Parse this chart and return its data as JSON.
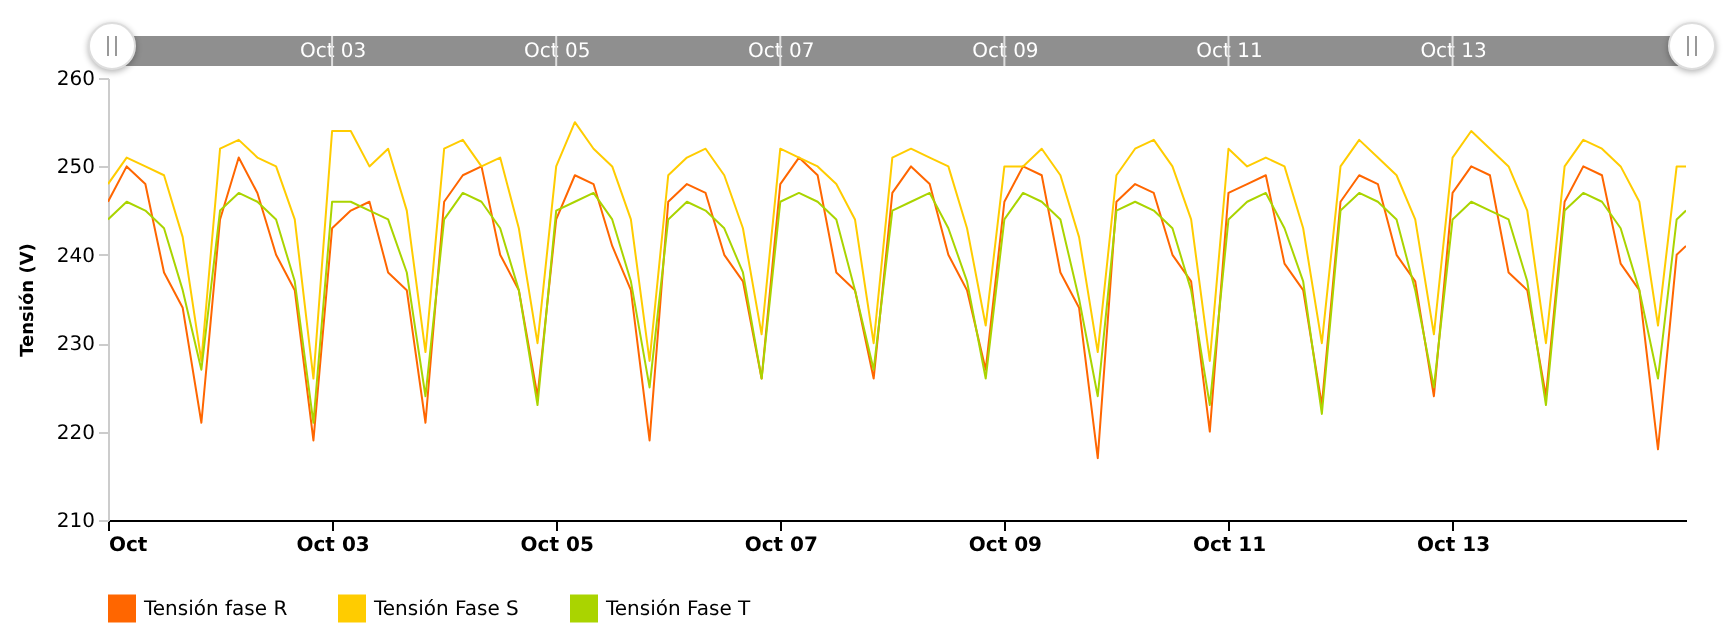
{
  "chart_data": {
    "type": "line",
    "ylabel": "Tensión (V)",
    "x": [
      "--10-01T00:00",
      "--10-01T04:00",
      "--10-01T08:00",
      "--10-01T12:00",
      "--10-01T16:00",
      "--10-01T20:00",
      "--10-02T00:00",
      "--10-02T04:00",
      "--10-02T08:00",
      "--10-02T12:00",
      "--10-02T16:00",
      "--10-02T20:00",
      "--10-03T00:00",
      "--10-03T04:00",
      "--10-03T08:00",
      "--10-03T12:00",
      "--10-03T16:00",
      "--10-03T20:00",
      "--10-04T00:00",
      "--10-04T04:00",
      "--10-04T08:00",
      "--10-04T12:00",
      "--10-04T16:00",
      "--10-04T20:00",
      "--10-05T00:00",
      "--10-05T04:00",
      "--10-05T08:00",
      "--10-05T12:00",
      "--10-05T16:00",
      "--10-05T20:00",
      "--10-06T00:00",
      "--10-06T04:00",
      "--10-06T08:00",
      "--10-06T12:00",
      "--10-06T16:00",
      "--10-06T20:00",
      "--10-07T00:00",
      "--10-07T04:00",
      "--10-07T08:00",
      "--10-07T12:00",
      "--10-07T16:00",
      "--10-07T20:00",
      "--10-08T00:00",
      "--10-08T04:00",
      "--10-08T08:00",
      "--10-08T12:00",
      "--10-08T16:00",
      "--10-08T20:00",
      "--10-09T00:00",
      "--10-09T04:00",
      "--10-09T08:00",
      "--10-09T12:00",
      "--10-09T16:00",
      "--10-09T20:00",
      "--10-10T00:00",
      "--10-10T04:00",
      "--10-10T08:00",
      "--10-10T12:00",
      "--10-10T16:00",
      "--10-10T20:00",
      "--10-11T00:00",
      "--10-11T04:00",
      "--10-11T08:00",
      "--10-11T12:00",
      "--10-11T16:00",
      "--10-11T20:00",
      "--10-12T00:00",
      "--10-12T04:00",
      "--10-12T08:00",
      "--10-12T12:00",
      "--10-12T16:00",
      "--10-12T20:00",
      "--10-13T00:00",
      "--10-13T04:00",
      "--10-13T08:00",
      "--10-13T12:00",
      "--10-13T16:00",
      "--10-13T20:00",
      "--10-14T00:00",
      "--10-14T04:00",
      "--10-14T08:00",
      "--10-14T12:00",
      "--10-14T16:00",
      "--10-14T20:00",
      "--10-15T00:00",
      "--10-15T02:00"
    ],
    "series": [
      {
        "name": "Tensión fase R",
        "color": "#ff6600",
        "values": [
          246,
          250,
          248,
          238,
          234,
          221,
          244,
          251,
          247,
          240,
          236,
          219,
          243,
          245,
          246,
          238,
          236,
          221,
          246,
          249,
          250,
          240,
          236,
          224,
          244,
          249,
          248,
          241,
          236,
          219,
          246,
          248,
          247,
          240,
          237,
          226,
          248,
          251,
          249,
          238,
          236,
          226,
          247,
          250,
          248,
          240,
          236,
          227,
          246,
          250,
          249,
          238,
          234,
          217,
          246,
          248,
          247,
          240,
          237,
          220,
          247,
          248,
          249,
          239,
          236,
          223,
          246,
          249,
          248,
          240,
          237,
          224,
          247,
          250,
          249,
          238,
          236,
          224,
          246,
          250,
          249,
          239,
          236,
          218,
          240,
          241
        ]
      },
      {
        "name": "Tensión Fase S",
        "color": "#ffcc00",
        "values": [
          248,
          251,
          250,
          249,
          242,
          228,
          252,
          253,
          251,
          250,
          244,
          226,
          254,
          254,
          250,
          252,
          245,
          229,
          252,
          253,
          250,
          251,
          243,
          230,
          250,
          255,
          252,
          250,
          244,
          228,
          249,
          251,
          252,
          249,
          243,
          231,
          252,
          251,
          250,
          248,
          244,
          230,
          251,
          252,
          251,
          250,
          243,
          232,
          250,
          250,
          252,
          249,
          242,
          229,
          249,
          252,
          253,
          250,
          244,
          228,
          252,
          250,
          251,
          250,
          243,
          230,
          250,
          253,
          251,
          249,
          244,
          231,
          251,
          254,
          252,
          250,
          245,
          230,
          250,
          253,
          252,
          250,
          246,
          232,
          250,
          250
        ]
      },
      {
        "name": "Tensión Fase T",
        "color": "#aad400",
        "values": [
          244,
          246,
          245,
          243,
          236,
          227,
          245,
          247,
          246,
          244,
          237,
          221,
          246,
          246,
          245,
          244,
          238,
          224,
          244,
          247,
          246,
          243,
          236,
          223,
          245,
          246,
          247,
          244,
          237,
          225,
          244,
          246,
          245,
          243,
          238,
          226,
          246,
          247,
          246,
          244,
          236,
          227,
          245,
          246,
          247,
          243,
          237,
          226,
          244,
          247,
          246,
          244,
          235,
          224,
          245,
          246,
          245,
          243,
          236,
          223,
          244,
          246,
          247,
          243,
          237,
          222,
          245,
          247,
          246,
          244,
          236,
          225,
          244,
          246,
          245,
          244,
          237,
          223,
          245,
          247,
          246,
          243,
          236,
          226,
          244,
          245
        ]
      }
    ],
    "xlim": [
      "--10-01T00:00",
      "--10-15T02:00"
    ],
    "xticks": [
      {
        "value": "--10-01",
        "label": "Oct"
      },
      {
        "value": "--10-03",
        "label": "Oct 03"
      },
      {
        "value": "--10-05",
        "label": "Oct 05"
      },
      {
        "value": "--10-07",
        "label": "Oct 07"
      },
      {
        "value": "--10-09",
        "label": "Oct 09"
      },
      {
        "value": "--10-11",
        "label": "Oct 11"
      },
      {
        "value": "--10-13",
        "label": "Oct 13"
      }
    ],
    "x2lim": [
      "--10-01T00:00",
      "--10-15T02:00"
    ],
    "x2ticks": [
      {
        "value": "--10-03",
        "label": "Oct 03"
      },
      {
        "value": "--10-05",
        "label": "Oct 05"
      },
      {
        "value": "--10-07",
        "label": "Oct 07"
      },
      {
        "value": "--10-09",
        "label": "Oct 09"
      },
      {
        "value": "--10-11",
        "label": "Oct 11"
      },
      {
        "value": "--10-13",
        "label": "Oct 13"
      }
    ],
    "ylim": [
      210,
      260
    ],
    "yticks": [
      210,
      220,
      230,
      240,
      250,
      260
    ],
    "grid": false,
    "legend": "bottom",
    "marker": "none",
    "line_style": "solid"
  }
}
